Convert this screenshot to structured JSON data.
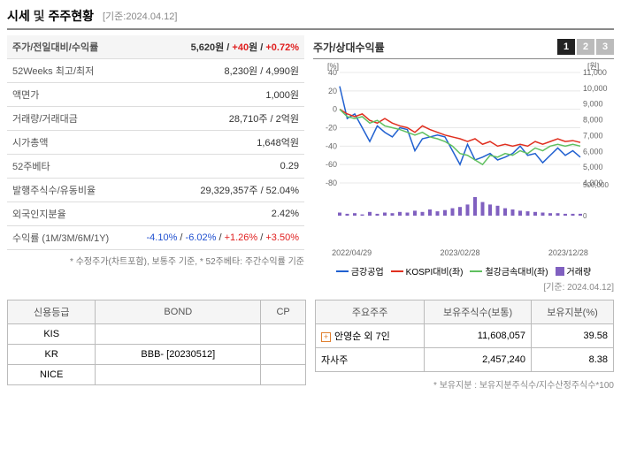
{
  "header": {
    "title_part1": "시세",
    "title_and": "및",
    "title_part2": "주주현황",
    "date_label": "[기준:2024.04.12]"
  },
  "info_table": {
    "rows": [
      {
        "label": "주가/전일대비/수익률",
        "v1": "5,620",
        "v1u": "원",
        "v2": "+40",
        "v2u": "원",
        "v3": "+0.72%",
        "bold": true,
        "style": "triple_red"
      },
      {
        "label": "52Weeks 최고/최저",
        "val": "8,230원 / 4,990원"
      },
      {
        "label": "액면가",
        "val": "1,000원"
      },
      {
        "label": "거래량/거래대금",
        "val": "28,710주 / 2억원"
      },
      {
        "label": "시가총액",
        "val": "1,648억원"
      },
      {
        "label": "52주베타",
        "val": "0.29"
      },
      {
        "label": "발행주식수/유동비율",
        "val": "29,329,357주 / 52.04%"
      },
      {
        "label": "외국인지분율",
        "val": "2.42%"
      },
      {
        "label": "수익률 (1M/3M/6M/1Y)",
        "v1": "-4.10%",
        "v2": "-6.02%",
        "v3": "+1.26%",
        "v4": "+3.50%",
        "style": "quad_mixed"
      }
    ],
    "footnote": "* 수정주가(차트포함), 보통주 기준, * 52주베타: 주간수익률 기준"
  },
  "chart": {
    "title": "주가/상대수익률",
    "tabs": [
      "1",
      "2",
      "3"
    ],
    "active_tab": 0,
    "date_label": "[기준: 2024.04.12]",
    "left_axis": {
      "label": "[%]",
      "min": -80,
      "max": 40,
      "step": 20,
      "fontsize": 9
    },
    "right_axis": {
      "label": "[원]",
      "min": 4000,
      "max": 11000,
      "step": 1000,
      "fontsize": 9
    },
    "x_labels": [
      "2022/04/29",
      "2023/02/28",
      "2023/12/28"
    ],
    "grid_color": "#e8e8e8",
    "background_color": "#ffffff",
    "series": [
      {
        "name": "금강공업",
        "color": "#2060d0",
        "type": "line",
        "data": [
          25,
          -10,
          -5,
          -20,
          -35,
          -18,
          -25,
          -30,
          -20,
          -22,
          -45,
          -32,
          -30,
          -28,
          -30,
          -45,
          -60,
          -38,
          -55,
          -52,
          -48,
          -55,
          -52,
          -48,
          -40,
          -50,
          -48,
          -58,
          -50,
          -42,
          -50,
          -45,
          -52
        ]
      },
      {
        "name": "KOSPI대비(좌)",
        "color": "#e03020",
        "type": "line",
        "data": [
          0,
          -5,
          -8,
          -5,
          -12,
          -15,
          -10,
          -15,
          -18,
          -20,
          -25,
          -18,
          -22,
          -25,
          -28,
          -30,
          -32,
          -35,
          -32,
          -38,
          -35,
          -40,
          -38,
          -40,
          -38,
          -40,
          -35,
          -38,
          -35,
          -32,
          -35,
          -34,
          -36
        ]
      },
      {
        "name": "철강금속대비(좌)",
        "color": "#60c060",
        "type": "line",
        "data": [
          0,
          -8,
          -10,
          -8,
          -15,
          -12,
          -18,
          -20,
          -22,
          -25,
          -28,
          -25,
          -30,
          -32,
          -35,
          -40,
          -48,
          -50,
          -55,
          -60,
          -50,
          -52,
          -48,
          -50,
          -45,
          -48,
          -42,
          -45,
          -40,
          -38,
          -40,
          -38,
          -40
        ]
      },
      {
        "name": "거래량",
        "color": "#8060c0",
        "type": "bar",
        "bar_max": 500000,
        "data": [
          50000,
          30000,
          40000,
          20000,
          60000,
          30000,
          50000,
          40000,
          60000,
          50000,
          80000,
          60000,
          100000,
          70000,
          90000,
          120000,
          140000,
          180000,
          300000,
          220000,
          180000,
          160000,
          120000,
          100000,
          80000,
          70000,
          60000,
          50000,
          40000,
          40000,
          30000,
          30000,
          30000
        ]
      }
    ],
    "volume_ticks": [
      "500,000",
      "0"
    ]
  },
  "credit_table": {
    "headers": [
      "신용등급",
      "BOND",
      "CP"
    ],
    "rows": [
      {
        "agency": "KIS",
        "bond": "",
        "cp": ""
      },
      {
        "agency": "KR",
        "bond": "BBB-  [20230512]",
        "cp": ""
      },
      {
        "agency": "NICE",
        "bond": "",
        "cp": ""
      }
    ]
  },
  "shareholder_table": {
    "headers": [
      "주요주주",
      "보유주식수(보통)",
      "보유지분(%)"
    ],
    "rows": [
      {
        "name": "안영순 외 7인",
        "shares": "11,608,057",
        "pct": "39.58",
        "expandable": true
      },
      {
        "name": "자사주",
        "shares": "2,457,240",
        "pct": "8.38",
        "expandable": false
      }
    ],
    "note": "* 보유지분 : 보유지분주식수/지수산정주식수*100"
  }
}
